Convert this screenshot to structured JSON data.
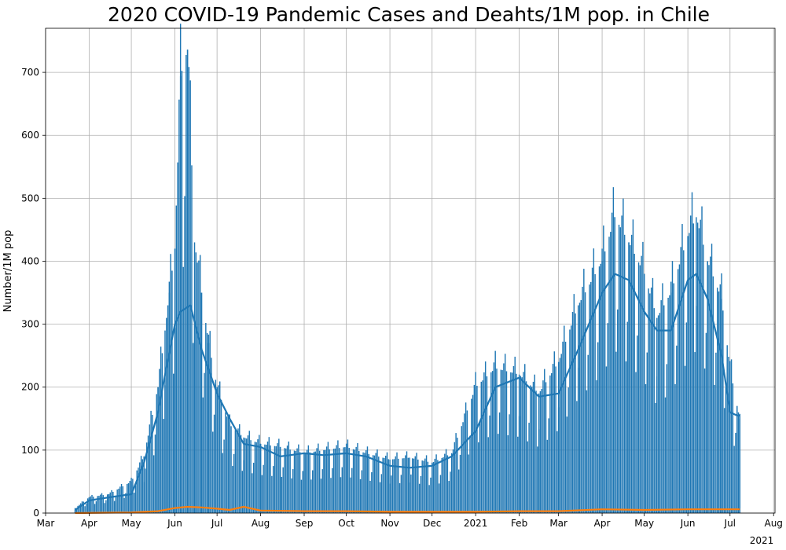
{
  "chart_data": {
    "type": "bar",
    "title": "2020 COVID-19 Pandemic Cases and Deahts/1M pop. in Chile",
    "ylabel": "Number/1M pop",
    "xlabel": "",
    "ylim": [
      0,
      770
    ],
    "yticks": [
      0,
      100,
      200,
      300,
      400,
      500,
      600,
      700
    ],
    "x_range": [
      "2020-03-01",
      "2021-08-02"
    ],
    "xticks": [
      {
        "date": "2020-03-01",
        "label": "Mar"
      },
      {
        "date": "2020-04-01",
        "label": "Apr"
      },
      {
        "date": "2020-05-01",
        "label": "May"
      },
      {
        "date": "2020-06-01",
        "label": "Jun"
      },
      {
        "date": "2020-07-01",
        "label": "Jul"
      },
      {
        "date": "2020-08-01",
        "label": "Aug"
      },
      {
        "date": "2020-09-01",
        "label": "Sep"
      },
      {
        "date": "2020-10-01",
        "label": "Oct"
      },
      {
        "date": "2020-11-01",
        "label": "Nov"
      },
      {
        "date": "2020-12-01",
        "label": "Dec"
      },
      {
        "date": "2021-01-01",
        "label": "2021"
      },
      {
        "date": "2021-02-01",
        "label": "Feb"
      },
      {
        "date": "2021-03-01",
        "label": "Mar"
      },
      {
        "date": "2021-04-01",
        "label": "Apr"
      },
      {
        "date": "2021-05-01",
        "label": "May"
      },
      {
        "date": "2021-06-01",
        "label": "Jun"
      },
      {
        "date": "2021-07-01",
        "label": "Jul"
      },
      {
        "date": "2021-08-01",
        "label": "Aug"
      }
    ],
    "offset_label": "2021",
    "grid": true,
    "series": [
      {
        "kind": "bars",
        "color": "#1f77b4",
        "x": [
          "2020-03-22",
          "2020-04-01",
          "2020-04-15",
          "2020-05-01",
          "2020-05-10",
          "2020-05-20",
          "2020-05-25",
          "2020-05-28",
          "2020-06-01",
          "2020-06-05",
          "2020-06-10",
          "2020-06-15",
          "2020-06-20",
          "2020-06-25",
          "2020-07-01",
          "2020-07-10",
          "2020-07-20",
          "2020-08-01",
          "2020-08-15",
          "2020-09-01",
          "2020-09-15",
          "2020-10-01",
          "2020-10-15",
          "2020-11-01",
          "2020-11-15",
          "2020-12-01",
          "2020-12-15",
          "2021-01-01",
          "2021-01-15",
          "2021-02-01",
          "2021-02-15",
          "2021-03-01",
          "2021-03-15",
          "2021-04-01",
          "2021-04-10",
          "2021-04-20",
          "2021-05-01",
          "2021-05-10",
          "2021-05-20",
          "2021-06-01",
          "2021-06-07",
          "2021-06-15",
          "2021-06-25",
          "2021-07-01",
          "2021-07-06",
          "2021-07-08"
        ],
        "values": [
          8,
          25,
          30,
          50,
          90,
          200,
          290,
          350,
          420,
          694,
          736,
          430,
          350,
          270,
          200,
          140,
          120,
          110,
          105,
          95,
          100,
          105,
          95,
          85,
          88,
          80,
          95,
          200,
          230,
          220,
          190,
          240,
          330,
          400,
          470,
          430,
          380,
          310,
          350,
          440,
          470,
          400,
          340,
          230,
          170,
          150
        ]
      },
      {
        "kind": "line",
        "color": "#1f77b4",
        "x": [
          "2020-03-22",
          "2020-04-01",
          "2020-04-15",
          "2020-05-01",
          "2020-05-10",
          "2020-05-20",
          "2020-05-25",
          "2020-06-01",
          "2020-06-05",
          "2020-06-12",
          "2020-06-20",
          "2020-07-01",
          "2020-07-10",
          "2020-07-20",
          "2020-08-01",
          "2020-08-15",
          "2020-09-01",
          "2020-09-15",
          "2020-10-01",
          "2020-10-15",
          "2020-11-01",
          "2020-11-15",
          "2020-12-01",
          "2020-12-15",
          "2021-01-01",
          "2021-01-15",
          "2021-02-01",
          "2021-02-15",
          "2021-03-01",
          "2021-03-15",
          "2021-04-01",
          "2021-04-10",
          "2021-04-20",
          "2021-05-01",
          "2021-05-10",
          "2021-05-20",
          "2021-06-01",
          "2021-06-07",
          "2021-06-15",
          "2021-06-25",
          "2021-07-01",
          "2021-07-06",
          "2021-07-08"
        ],
        "values": [
          5,
          20,
          25,
          30,
          80,
          160,
          220,
          300,
          320,
          330,
          260,
          190,
          150,
          110,
          105,
          90,
          95,
          92,
          95,
          90,
          75,
          72,
          75,
          90,
          130,
          200,
          215,
          185,
          190,
          260,
          350,
          380,
          370,
          320,
          290,
          290,
          370,
          380,
          340,
          250,
          160,
          155,
          155
        ]
      },
      {
        "kind": "line",
        "color": "#ff7f0e",
        "x": [
          "2020-03-22",
          "2020-05-01",
          "2020-05-20",
          "2020-06-01",
          "2020-06-10",
          "2020-06-20",
          "2020-07-01",
          "2020-07-10",
          "2020-07-20",
          "2020-08-01",
          "2020-09-01",
          "2020-10-01",
          "2020-11-01",
          "2020-12-01",
          "2021-01-01",
          "2021-02-01",
          "2021-03-01",
          "2021-04-01",
          "2021-05-01",
          "2021-06-01",
          "2021-07-01",
          "2021-07-08"
        ],
        "values": [
          0,
          1,
          3,
          8,
          10,
          9,
          7,
          5,
          10,
          4,
          3,
          3,
          2,
          2,
          2,
          3,
          3,
          6,
          5,
          6,
          6,
          6
        ]
      }
    ]
  }
}
